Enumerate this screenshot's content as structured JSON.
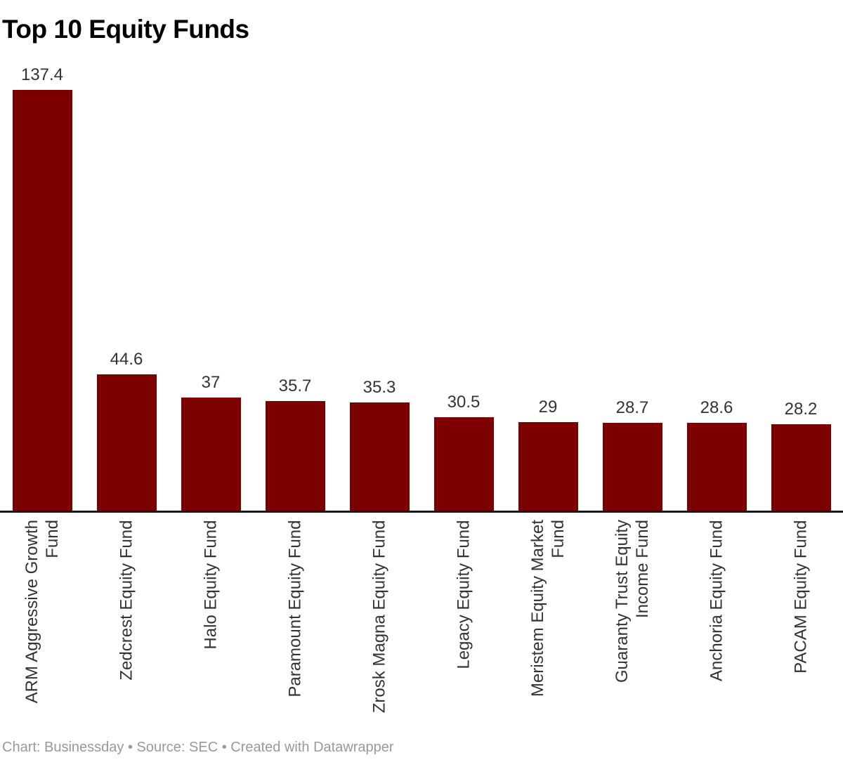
{
  "title": "Top 10 Equity Funds",
  "footer": "Chart: Businessday • Source: SEC • Created with Datawrapper",
  "colors": {
    "bar": "#7d0000",
    "axis_line": "#1a1a1a",
    "label_text": "#333333",
    "footer_text": "#999999"
  },
  "chart_data": {
    "type": "bar",
    "orientation": "vertical",
    "title": "Top 10 Equity Funds",
    "xlabel": "",
    "ylabel": "",
    "ylim": [
      0,
      137.4
    ],
    "grid": false,
    "legend_position": "none",
    "bar_color": "#7d0000",
    "categories": [
      "ARM Aggressive Growth Fund",
      "Zedcrest Equity Fund",
      "Halo Equity Fund",
      "Paramount Equity Fund",
      "Zrosk Magna Equity Fund",
      "Legacy Equity Fund",
      "Meristem Equity Market Fund",
      "Guaranty Trust Equity Income Fund",
      "Anchoria Equity Fund",
      "PACAM Equity Fund"
    ],
    "category_label_lines": [
      [
        "ARM Aggressive Growth",
        "Fund"
      ],
      [
        "Zedcrest Equity Fund"
      ],
      [
        "Halo Equity Fund"
      ],
      [
        "Paramount Equity Fund"
      ],
      [
        "Zrosk Magna Equity Fund"
      ],
      [
        "Legacy Equity Fund"
      ],
      [
        "Meristem Equity Market",
        "Fund"
      ],
      [
        "Guaranty Trust Equity",
        "Income Fund"
      ],
      [
        "Anchoria Equity Fund"
      ],
      [
        "PACAM Equity Fund"
      ]
    ],
    "values": [
      137.4,
      44.6,
      37,
      35.7,
      35.3,
      30.5,
      29,
      28.7,
      28.6,
      28.2
    ],
    "value_labels": [
      "137.4",
      "44.6",
      "37",
      "35.7",
      "35.3",
      "30.5",
      "29",
      "28.7",
      "28.6",
      "28.2"
    ]
  }
}
